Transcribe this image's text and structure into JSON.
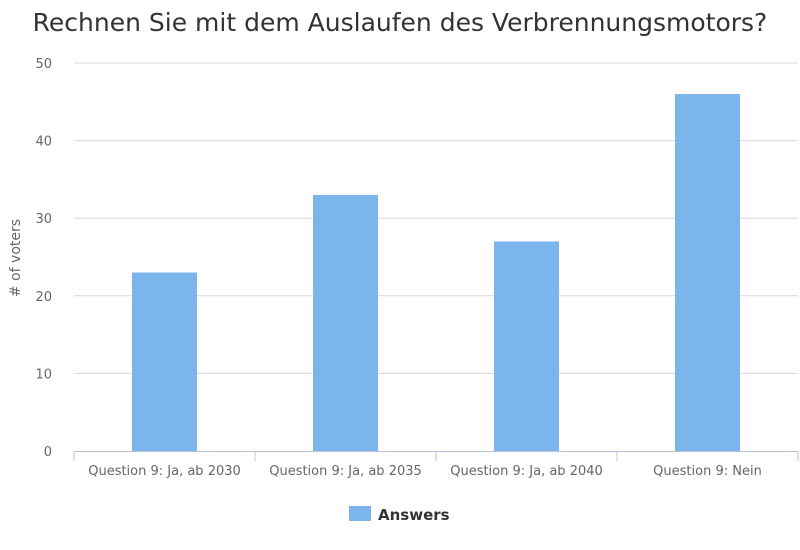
{
  "chart_data": {
    "type": "bar",
    "title": "Rechnen Sie mit dem Auslaufen des Verbrennungsmotors?",
    "categories": [
      "Question 9: Ja, ab 2030",
      "Question 9: Ja, ab 2035",
      "Question 9: Ja, ab 2040",
      "Question 9: Nein"
    ],
    "series": [
      {
        "name": "Answers",
        "values": [
          23,
          33,
          27,
          46
        ],
        "color": "#7cb5ec"
      }
    ],
    "ylabel": "# of voters",
    "xlabel": "",
    "ylim": [
      0,
      50
    ],
    "yticks": [
      0,
      10,
      20,
      30,
      40,
      50
    ],
    "grid": true,
    "legend": "bottom-center"
  }
}
